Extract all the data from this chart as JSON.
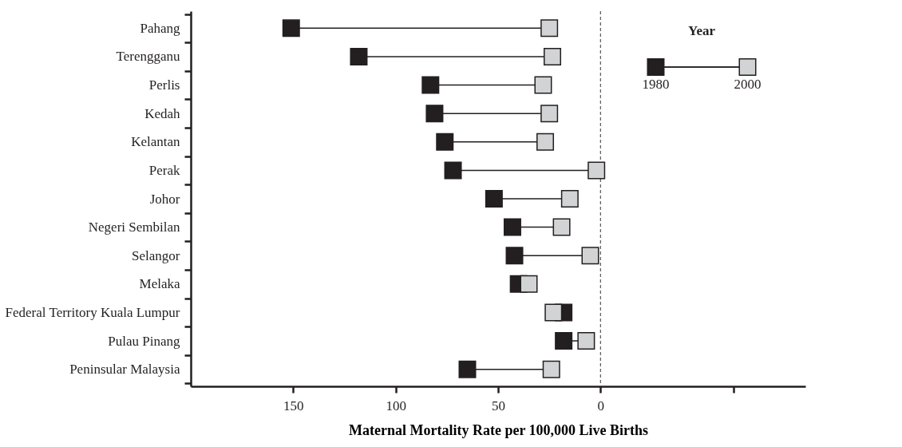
{
  "chart_data": {
    "type": "scatter",
    "orientation": "horizontal",
    "xlabel": "Maternal Mortality Rate per 100,000 Live Births",
    "legend_title": "Year",
    "legend": "top right",
    "marker": "square",
    "grid": false,
    "categories": [
      "Pahang",
      "Terengganu",
      "Perlis",
      "Kedah",
      "Kelantan",
      "Perak",
      "Johor",
      "Negeri Sembilan",
      "Selangor",
      "Melaka",
      "Federal Territory Kuala Lumpur",
      "Pulau Pinang",
      "Peninsular Malaysia"
    ],
    "xlim": [
      200,
      -100
    ],
    "xticks": [
      150,
      100,
      50,
      0,
      {
        "value": -65,
        "label": null
      }
    ],
    "ref_lines": [
      {
        "axis": "x",
        "value": 0,
        "line_style": "dashed",
        "color": "#555555"
      }
    ],
    "series": [
      {
        "name": "1980",
        "color": "#231f20",
        "values": [
          151,
          118,
          83,
          81,
          76,
          72,
          52,
          43,
          42,
          40,
          18,
          18,
          65
        ]
      },
      {
        "name": "2000",
        "color": "#d1d3d4",
        "values": [
          25,
          23.5,
          28,
          25,
          27,
          2,
          15,
          19,
          5,
          35,
          23,
          7,
          24
        ]
      }
    ]
  }
}
